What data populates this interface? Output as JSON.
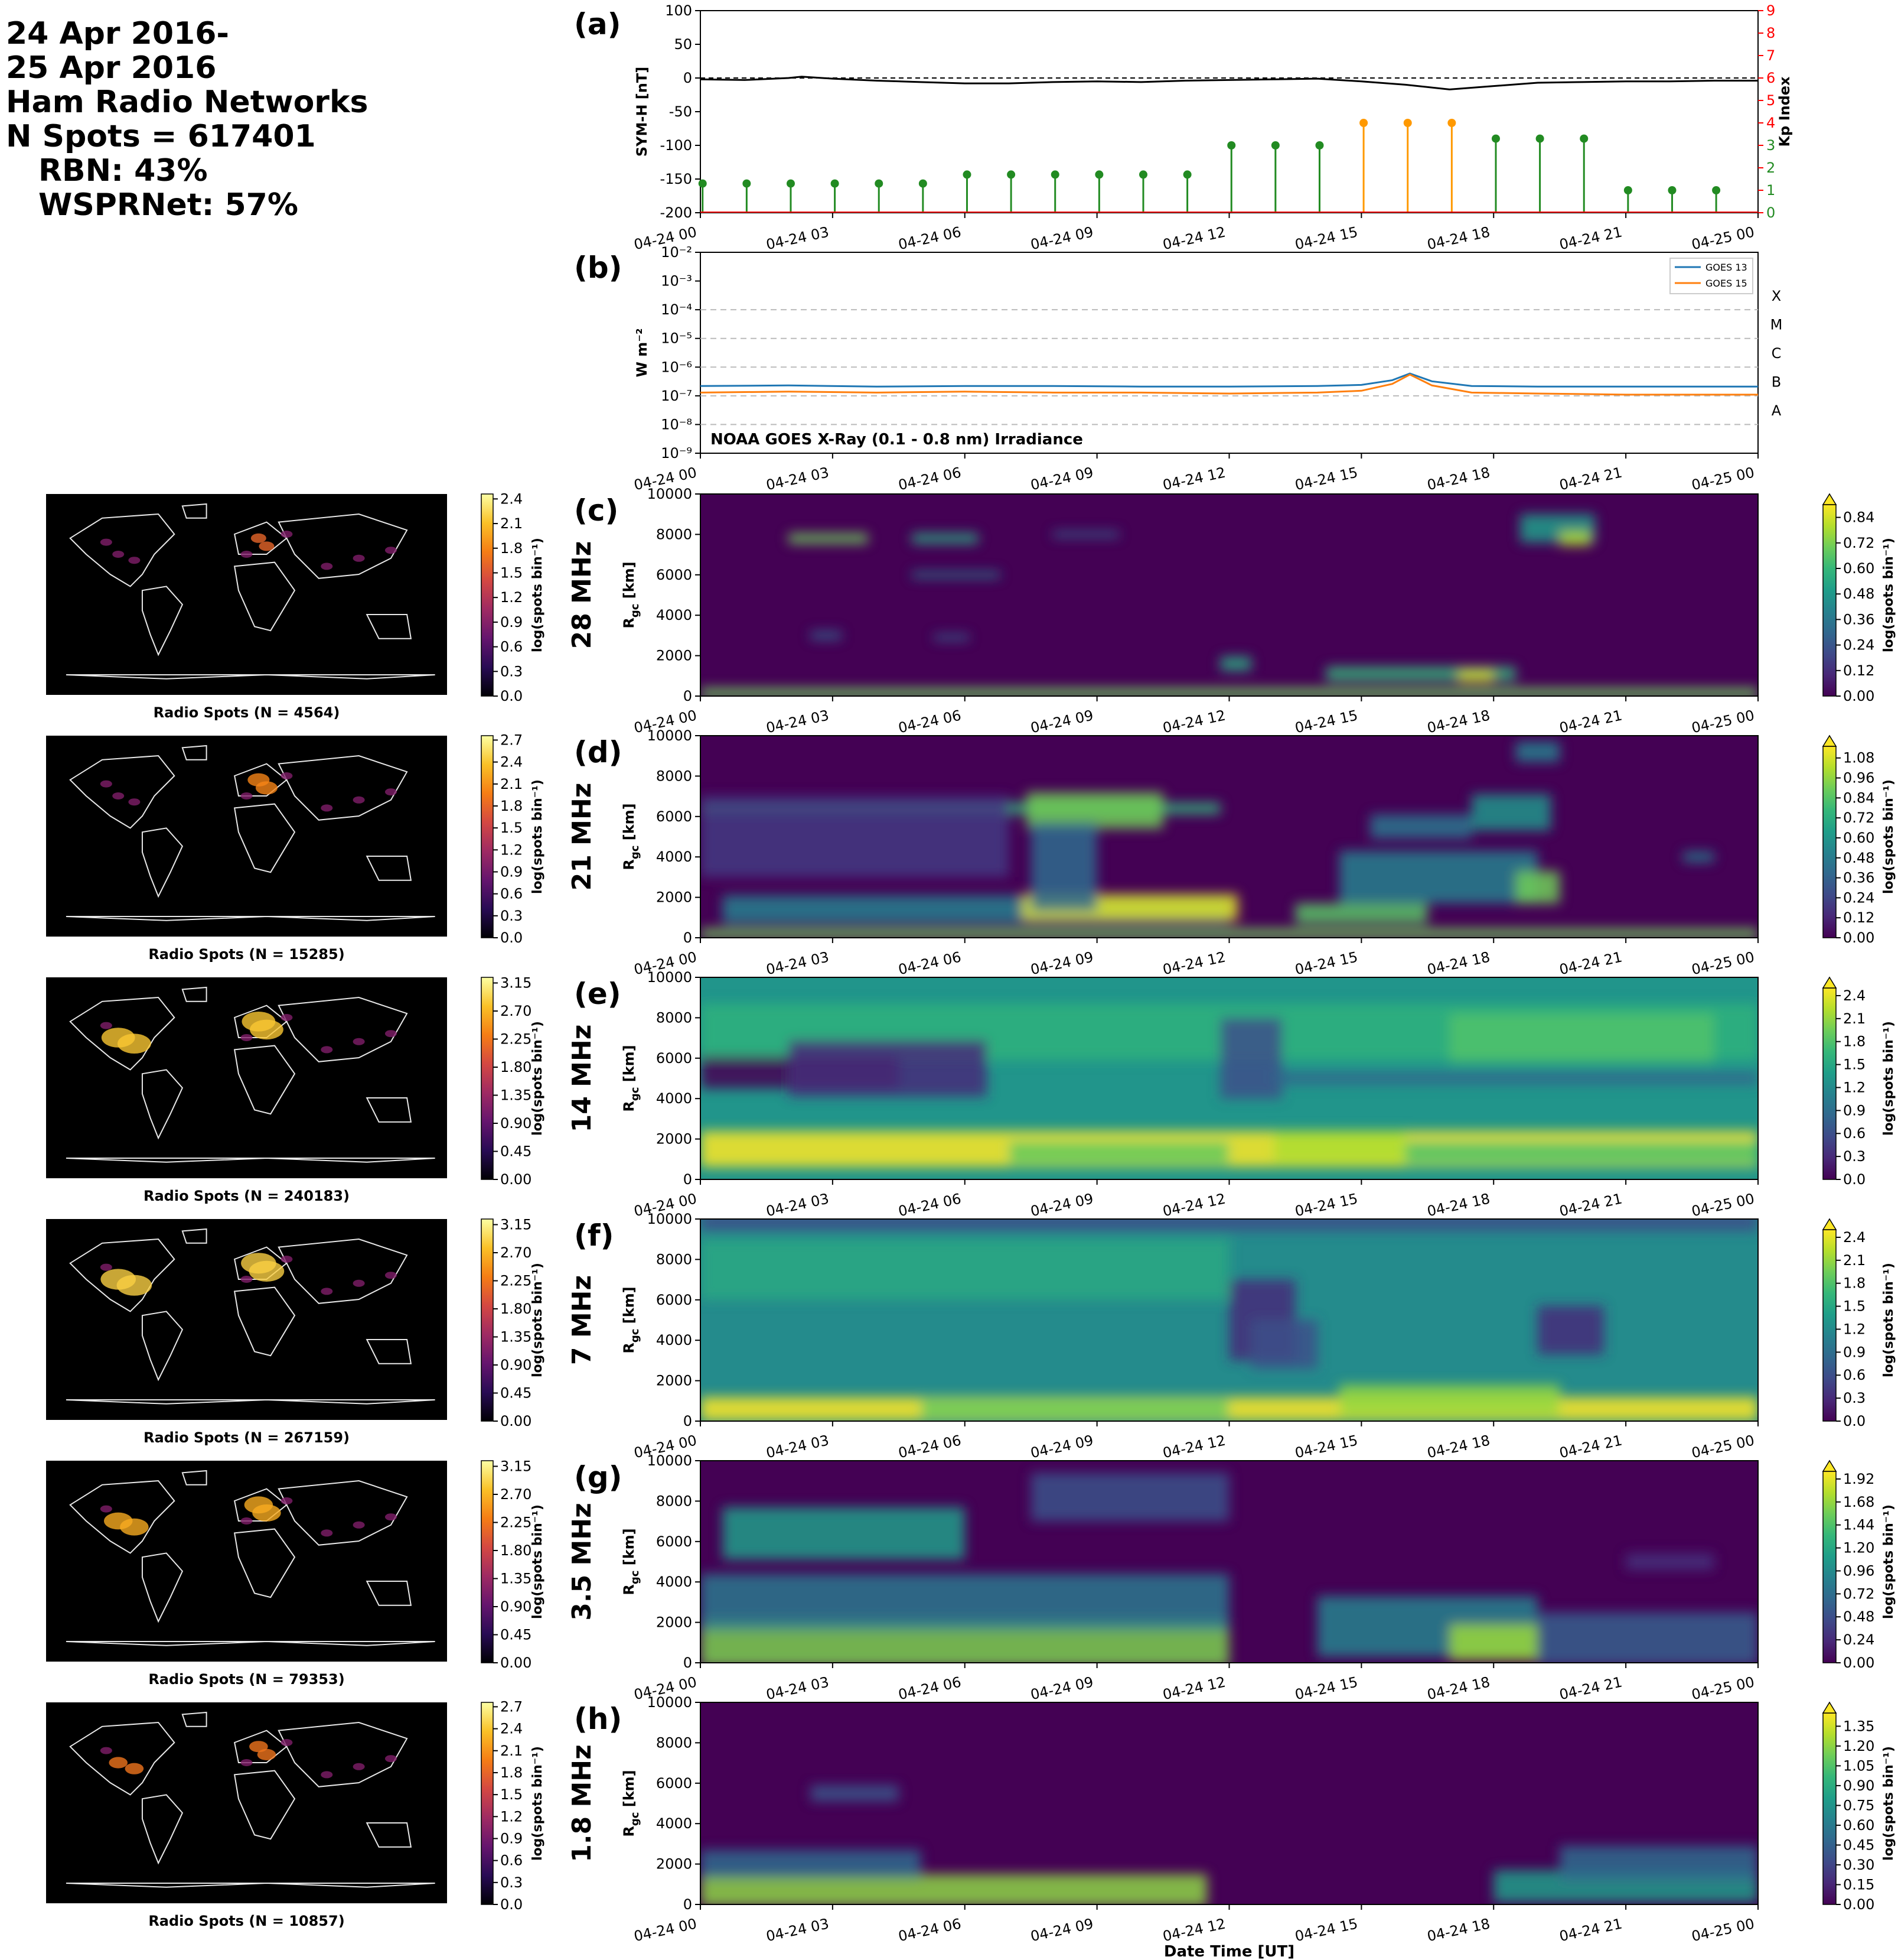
{
  "header": {
    "lines": [
      "24 Apr 2016-",
      "25 Apr 2016",
      "Ham Radio Networks",
      "N Spots = 617401"
    ],
    "sub_lines": [
      "RBN: 43%",
      "WSPRNet: 57%"
    ]
  },
  "colors": {
    "symh": "#000000",
    "kp_green": "#228b22",
    "kp_orange": "#ff9900",
    "kp_axis": "#ff0000",
    "goes13": "#1f77b4",
    "goes15": "#ff7f0e",
    "viridis_low": "#440154",
    "viridis_high": "#fde725"
  },
  "time_ticks": [
    "04-24 00",
    "04-24 03",
    "04-24 06",
    "04-24 09",
    "04-24 12",
    "04-24 15",
    "04-24 18",
    "04-24 21",
    "04-25 00"
  ],
  "xlabel": "Date Time [UT]",
  "chart_data": [
    {
      "id": "a",
      "panel_label": "(a)",
      "type": "line",
      "ylabel": "SYM-H [nT]",
      "ylabel_right": "Kp Index",
      "ylim": [
        -200,
        100
      ],
      "yticks": [
        100,
        50,
        0,
        -50,
        -100,
        -150,
        -200
      ],
      "ylim_right": [
        0,
        9
      ],
      "yticks_right": [
        0,
        1,
        2,
        3,
        4,
        5,
        6,
        7,
        8,
        9
      ],
      "symh": {
        "x_hours": [
          0,
          1,
          2,
          2.3,
          3,
          4,
          5,
          6,
          7,
          8,
          9,
          10,
          11,
          12,
          13,
          14,
          15,
          16,
          17,
          18,
          19,
          20,
          21,
          22,
          23,
          24
        ],
        "values": [
          -2,
          -3,
          0,
          2,
          -1,
          -4,
          -6,
          -8,
          -8,
          -6,
          -5,
          -6,
          -4,
          -3,
          -2,
          -1,
          -5,
          -10,
          -17,
          -12,
          -7,
          -6,
          -5,
          -5,
          -4,
          -4
        ]
      },
      "kp": {
        "x_hours": [
          0,
          1,
          2,
          3,
          4,
          5,
          6,
          7,
          8,
          9,
          10,
          11,
          12,
          13,
          14,
          15,
          16,
          17,
          18,
          19,
          20,
          21,
          22,
          23
        ],
        "values": [
          1.3,
          1.3,
          1.3,
          1.3,
          1.3,
          1.3,
          1.7,
          1.7,
          1.7,
          1.7,
          1.7,
          1.7,
          3,
          3,
          3,
          4,
          4,
          4,
          3.3,
          3.3,
          3.3,
          1,
          1,
          1
        ]
      }
    },
    {
      "id": "b",
      "panel_label": "(b)",
      "type": "line",
      "log_scale": true,
      "ylabel": "W m⁻²",
      "ylim_exp": [
        -9,
        -2
      ],
      "yticks": [
        "10⁻²",
        "10⁻³",
        "10⁻⁴",
        "10⁻⁵",
        "10⁻⁶",
        "10⁻⁷",
        "10⁻⁸",
        "10⁻⁹"
      ],
      "flare_classes": [
        "X",
        "M",
        "C",
        "B",
        "A"
      ],
      "annotation": "NOAA GOES X-Ray (0.1 - 0.8 nm) Irradiance",
      "series": [
        {
          "name": "GOES 13",
          "x_hours": [
            0,
            2,
            4,
            6,
            8,
            10,
            12,
            14,
            15,
            15.7,
            16.1,
            16.6,
            17.5,
            19,
            21,
            24
          ],
          "values": [
            2.2e-07,
            2.3e-07,
            2.1e-07,
            2.2e-07,
            2.2e-07,
            2.1e-07,
            2.1e-07,
            2.2e-07,
            2.4e-07,
            3.5e-07,
            6e-07,
            3.2e-07,
            2.2e-07,
            2.1e-07,
            2.1e-07,
            2.1e-07
          ]
        },
        {
          "name": "GOES 15",
          "x_hours": [
            0,
            2,
            4,
            6,
            8,
            10,
            12,
            14,
            15,
            15.7,
            16.1,
            16.6,
            17.5,
            19,
            21,
            24
          ],
          "values": [
            1.3e-07,
            1.4e-07,
            1.3e-07,
            1.4e-07,
            1.3e-07,
            1.3e-07,
            1.2e-07,
            1.3e-07,
            1.5e-07,
            2.6e-07,
            5.5e-07,
            2.3e-07,
            1.3e-07,
            1.2e-07,
            1.1e-07,
            1.1e-07
          ]
        }
      ]
    },
    {
      "id": "c",
      "panel_label": "(c)",
      "type": "heatmap",
      "band": "28 MHz",
      "ylabel": "R_gc [km]",
      "yticks": [
        0,
        2000,
        4000,
        6000,
        8000,
        10000
      ],
      "cbar_label": "log(spots bin⁻¹)",
      "cbar_ticks": [
        "0.00",
        "0.12",
        "0.24",
        "0.36",
        "0.48",
        "0.60",
        "0.72",
        "0.84"
      ],
      "cbar_max": 0.9,
      "map_title": "Radio Spots (N = 4564)",
      "map_cbar_ticks": [
        "0.0",
        "0.3",
        "0.6",
        "0.9",
        "1.2",
        "1.5",
        "1.8",
        "2.1",
        "2.4"
      ],
      "blobs": [
        [
          0,
          24,
          150,
          250,
          0.7
        ],
        [
          2,
          3.8,
          7800,
          250,
          0.7
        ],
        [
          4.8,
          6.3,
          7800,
          250,
          0.55
        ],
        [
          4.8,
          6.8,
          6000,
          150,
          0.4
        ],
        [
          8,
          9.5,
          8000,
          150,
          0.3
        ],
        [
          11.8,
          12.5,
          1600,
          350,
          0.55
        ],
        [
          14.2,
          18.5,
          1100,
          350,
          0.6
        ],
        [
          17.2,
          18,
          1000,
          300,
          0.85
        ],
        [
          18.6,
          20.3,
          8300,
          700,
          0.5
        ],
        [
          19.5,
          20.2,
          7800,
          350,
          0.8
        ],
        [
          2.5,
          3.2,
          3000,
          200,
          0.3
        ],
        [
          5.3,
          6.1,
          2900,
          150,
          0.3
        ]
      ]
    },
    {
      "id": "d",
      "panel_label": "(d)",
      "type": "heatmap",
      "band": "21 MHz",
      "ylabel": "R_gc [km]",
      "yticks": [
        0,
        2000,
        4000,
        6000,
        8000,
        10000
      ],
      "cbar_label": "log(spots bin⁻¹)",
      "cbar_ticks": [
        "0.00",
        "0.12",
        "0.24",
        "0.36",
        "0.48",
        "0.60",
        "0.72",
        "0.84",
        "0.96",
        "1.08"
      ],
      "cbar_max": 1.15,
      "map_title": "Radio Spots (N = 15285)",
      "map_cbar_ticks": [
        "0.0",
        "0.3",
        "0.6",
        "0.9",
        "1.2",
        "1.5",
        "1.8",
        "2.1",
        "2.4",
        "2.7"
      ],
      "blobs": [
        [
          0,
          24,
          200,
          250,
          0.9
        ],
        [
          0,
          11.8,
          6400,
          280,
          0.75
        ],
        [
          0.5,
          12,
          1400,
          700,
          0.5
        ],
        [
          7.3,
          12.2,
          1500,
          650,
          1.1
        ],
        [
          7.4,
          10.5,
          6300,
          900,
          0.9
        ],
        [
          7.5,
          9,
          3500,
          2200,
          0.4
        ],
        [
          13.5,
          16.5,
          1200,
          500,
          0.85
        ],
        [
          14.5,
          19,
          3000,
          1300,
          0.5
        ],
        [
          15.2,
          17.5,
          5500,
          600,
          0.45
        ],
        [
          17.5,
          19.3,
          6200,
          900,
          0.6
        ],
        [
          18.5,
          19.5,
          2500,
          800,
          0.9
        ],
        [
          18.5,
          19.5,
          9200,
          500,
          0.5
        ],
        [
          22.3,
          23,
          4000,
          250,
          0.5
        ],
        [
          0,
          7,
          5000,
          2000,
          0.2
        ]
      ]
    },
    {
      "id": "e",
      "panel_label": "(e)",
      "type": "heatmap",
      "band": "14 MHz",
      "ylabel": "R_gc [km]",
      "yticks": [
        0,
        2000,
        4000,
        6000,
        8000,
        10000
      ],
      "cbar_label": "log(spots bin⁻¹)",
      "cbar_ticks": [
        "0.0",
        "0.3",
        "0.6",
        "0.9",
        "1.2",
        "1.5",
        "1.8",
        "2.1",
        "2.4"
      ],
      "cbar_max": 2.5,
      "map_title": "Radio Spots (N = 240183)",
      "map_cbar_ticks": [
        "0.00",
        "0.45",
        "0.90",
        "1.35",
        "1.80",
        "2.25",
        "2.70",
        "3.15"
      ],
      "background": 1.3,
      "blobs": [
        [
          0,
          24,
          1500,
          900,
          1.4
        ],
        [
          7,
          12,
          1300,
          600,
          0.6
        ],
        [
          13,
          16,
          1600,
          800,
          0.9
        ],
        [
          16,
          24,
          1300,
          600,
          0.5
        ],
        [
          0,
          24,
          7300,
          1400,
          0.3
        ],
        [
          17,
          23,
          7000,
          1200,
          0.5
        ]
      ],
      "holes": [
        [
          0,
          4.5,
          5300,
          800,
          1.3
        ],
        [
          2,
          6.5,
          5500,
          1400,
          1.0
        ],
        [
          11.8,
          13.2,
          6000,
          2000,
          0.7
        ],
        [
          13,
          24,
          5000,
          300,
          0.5
        ]
      ]
    },
    {
      "id": "f",
      "panel_label": "(f)",
      "type": "heatmap",
      "band": "7 MHz",
      "ylabel": "R_gc [km]",
      "yticks": [
        0,
        2000,
        4000,
        6000,
        8000,
        10000
      ],
      "cbar_label": "log(spots bin⁻¹)",
      "cbar_ticks": [
        "0.0",
        "0.3",
        "0.6",
        "0.9",
        "1.2",
        "1.5",
        "1.8",
        "2.1",
        "2.4"
      ],
      "cbar_max": 2.5,
      "map_title": "Radio Spots (N = 267159)",
      "map_cbar_ticks": [
        "0.00",
        "0.45",
        "0.90",
        "1.35",
        "1.80",
        "2.25",
        "2.70",
        "3.15"
      ],
      "background": 1.2,
      "blobs": [
        [
          0,
          24,
          600,
          600,
          1.5
        ],
        [
          5,
          12,
          600,
          500,
          0.7
        ],
        [
          14.5,
          19.5,
          1000,
          800,
          0.9
        ],
        [
          0,
          12,
          7500,
          1500,
          0.3
        ]
      ],
      "holes": [
        [
          12,
          13.5,
          5000,
          2000,
          0.9
        ],
        [
          12.5,
          14,
          3800,
          1200,
          0.6
        ],
        [
          19,
          20.5,
          4500,
          1200,
          0.9
        ],
        [
          0,
          24,
          9900,
          500,
          0.6
        ]
      ]
    },
    {
      "id": "g",
      "panel_label": "(g)",
      "type": "heatmap",
      "band": "3.5 MHz",
      "ylabel": "R_gc [km]",
      "yticks": [
        0,
        2000,
        4000,
        6000,
        8000,
        10000
      ],
      "cbar_label": "log(spots bin⁻¹)",
      "cbar_ticks": [
        "0.00",
        "0.24",
        "0.48",
        "0.72",
        "0.96",
        "1.20",
        "1.44",
        "1.68",
        "1.92"
      ],
      "cbar_max": 2.0,
      "map_title": "Radio Spots (N = 79353)",
      "map_cbar_ticks": [
        "0.00",
        "0.45",
        "0.90",
        "1.35",
        "1.80",
        "2.25",
        "2.70",
        "3.15"
      ],
      "blobs": [
        [
          0,
          12,
          1000,
          1200,
          1.6
        ],
        [
          0,
          12,
          3000,
          1400,
          0.8
        ],
        [
          0.5,
          6,
          6400,
          1300,
          1.1
        ],
        [
          7.5,
          12,
          8200,
          1200,
          0.5
        ],
        [
          14,
          19,
          1800,
          1500,
          0.9
        ],
        [
          17,
          19,
          1000,
          900,
          1.7
        ],
        [
          19,
          24,
          1200,
          1300,
          0.6
        ],
        [
          21,
          23,
          5000,
          400,
          0.3
        ]
      ]
    },
    {
      "id": "h",
      "panel_label": "(h)",
      "type": "heatmap",
      "band": "1.8 MHz",
      "ylabel": "R_gc [km]",
      "yticks": [
        0,
        2000,
        4000,
        6000,
        8000,
        10000
      ],
      "cbar_label": "log(spots bin⁻¹)",
      "cbar_ticks": [
        "0.00",
        "0.15",
        "0.30",
        "0.45",
        "0.60",
        "0.75",
        "0.90",
        "1.05",
        "1.20",
        "1.35"
      ],
      "cbar_max": 1.45,
      "map_title": "Radio Spots (N = 10857)",
      "map_cbar_ticks": [
        "0.0",
        "0.3",
        "0.6",
        "0.9",
        "1.2",
        "1.5",
        "1.8",
        "2.1",
        "2.4",
        "2.7"
      ],
      "blobs": [
        [
          0,
          11.5,
          700,
          800,
          1.2
        ],
        [
          0,
          5,
          2000,
          700,
          0.5
        ],
        [
          2.5,
          4.5,
          5500,
          400,
          0.4
        ],
        [
          18,
          24,
          900,
          800,
          0.8
        ],
        [
          19.5,
          24,
          2000,
          900,
          0.5
        ]
      ]
    }
  ]
}
